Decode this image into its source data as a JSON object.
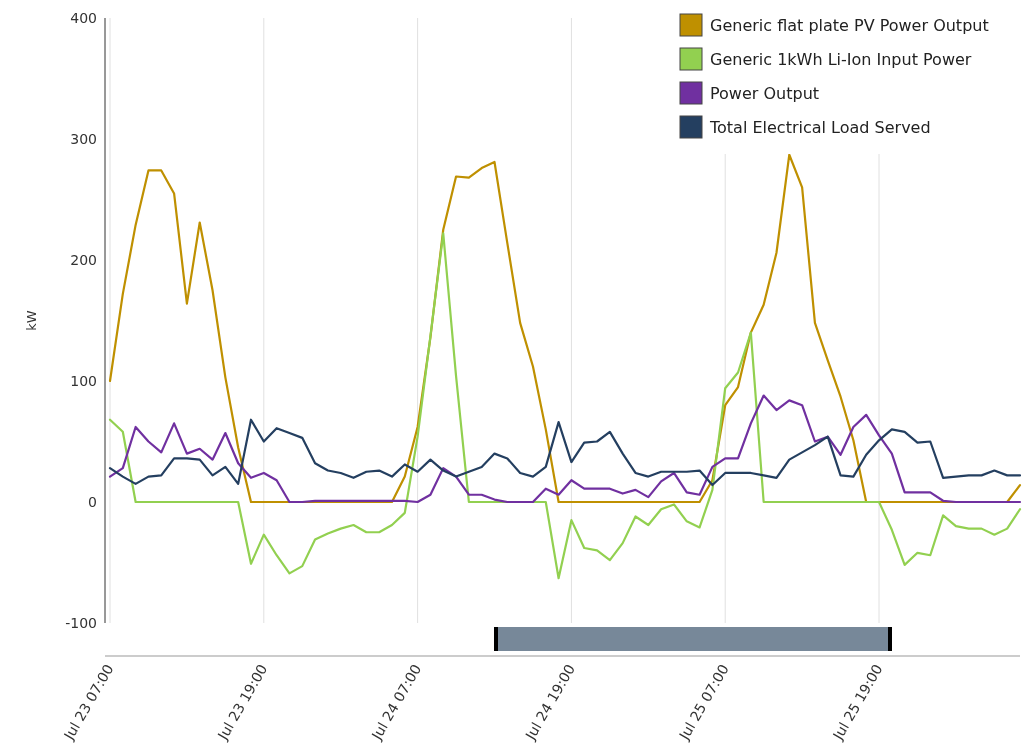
{
  "chart_data": {
    "type": "line",
    "ylabel": "kW",
    "ylim": [
      -100,
      400
    ],
    "yticks": [
      -100,
      0,
      100,
      200,
      300,
      400
    ],
    "categories": [
      "Jul 23 07:00",
      null,
      null,
      null,
      null,
      null,
      null,
      null,
      null,
      null,
      null,
      null,
      "Jul 23 19:00",
      null,
      null,
      null,
      null,
      null,
      null,
      null,
      null,
      null,
      null,
      null,
      "Jul 24 07:00",
      null,
      null,
      null,
      null,
      null,
      null,
      null,
      null,
      null,
      null,
      null,
      "Jul 24 19:00",
      null,
      null,
      null,
      null,
      null,
      null,
      null,
      null,
      null,
      null,
      null,
      "Jul 25 07:00",
      null,
      null,
      null,
      null,
      null,
      null,
      null,
      null,
      null,
      null,
      null,
      "Jul 25 19:00",
      null,
      null,
      null,
      null,
      null,
      null,
      null,
      null,
      null,
      null,
      null
    ],
    "grid": "x",
    "legend": "top right",
    "marker": "none",
    "series": [
      {
        "name": "Generic flat plate PV Power Output",
        "color": "#bf9000",
        "values": [
          100,
          172,
          229,
          274,
          274,
          255,
          164,
          231,
          175,
          103,
          45,
          0,
          0,
          0,
          0,
          0,
          0,
          0,
          0,
          0,
          0,
          0,
          0,
          21,
          62,
          136,
          225,
          269,
          268,
          276,
          281,
          214,
          148,
          112,
          60,
          0,
          0,
          0,
          0,
          0,
          0,
          0,
          0,
          0,
          0,
          0,
          0,
          18,
          80,
          95,
          140,
          163,
          206,
          287,
          260,
          148,
          117,
          87,
          51,
          0,
          0,
          0,
          0,
          0,
          0,
          0,
          0,
          0,
          0,
          0,
          0,
          14
        ]
      },
      {
        "name": "Generic 1kWh Li-Ion Input Power",
        "color": "#92d050",
        "values": [
          68,
          58,
          0,
          0,
          0,
          0,
          0,
          0,
          0,
          0,
          0,
          -51,
          -27,
          -44,
          -59,
          -53,
          -31,
          -26,
          -22,
          -19,
          -25,
          -25,
          -19,
          -9,
          54,
          137,
          222,
          104,
          0,
          0,
          0,
          0,
          0,
          0,
          0,
          -63,
          -15,
          -38,
          -40,
          -48,
          -34,
          -12,
          -19,
          -6,
          -2,
          -16,
          -21,
          10,
          94,
          107,
          140,
          0,
          0,
          0,
          0,
          0,
          0,
          0,
          0,
          0,
          0,
          -23,
          -52,
          -42,
          -44,
          -11,
          -20,
          -22,
          -22,
          -27,
          -22,
          -6
        ]
      },
      {
        "name": "Power Output",
        "color": "#7030a0",
        "values": [
          21,
          28,
          62,
          50,
          41,
          65,
          40,
          44,
          35,
          57,
          32,
          20,
          24,
          18,
          0,
          0,
          1,
          1,
          1,
          1,
          1,
          1,
          1,
          1,
          0,
          6,
          28,
          21,
          6,
          6,
          2,
          0,
          0,
          0,
          11,
          6,
          18,
          11,
          11,
          11,
          7,
          10,
          4,
          17,
          24,
          8,
          6,
          29,
          36,
          36,
          65,
          88,
          76,
          84,
          80,
          50,
          54,
          39,
          62,
          72,
          55,
          40,
          8,
          8,
          8,
          1,
          0,
          0,
          0,
          0,
          0,
          0
        ]
      },
      {
        "name": "Total Electrical Load Served",
        "color": "#243f60",
        "values": [
          28,
          21,
          15,
          21,
          22,
          36,
          36,
          35,
          22,
          29,
          15,
          68,
          50,
          61,
          57,
          53,
          32,
          26,
          24,
          20,
          25,
          26,
          21,
          31,
          25,
          35,
          26,
          21,
          25,
          29,
          40,
          36,
          24,
          21,
          29,
          66,
          33,
          49,
          50,
          58,
          40,
          24,
          21,
          25,
          25,
          25,
          26,
          14,
          24,
          24,
          24,
          22,
          20,
          35,
          41,
          47,
          54,
          22,
          21,
          39,
          51,
          60,
          58,
          49,
          50,
          20,
          21,
          22,
          22,
          26,
          22,
          22
        ]
      }
    ]
  }
}
